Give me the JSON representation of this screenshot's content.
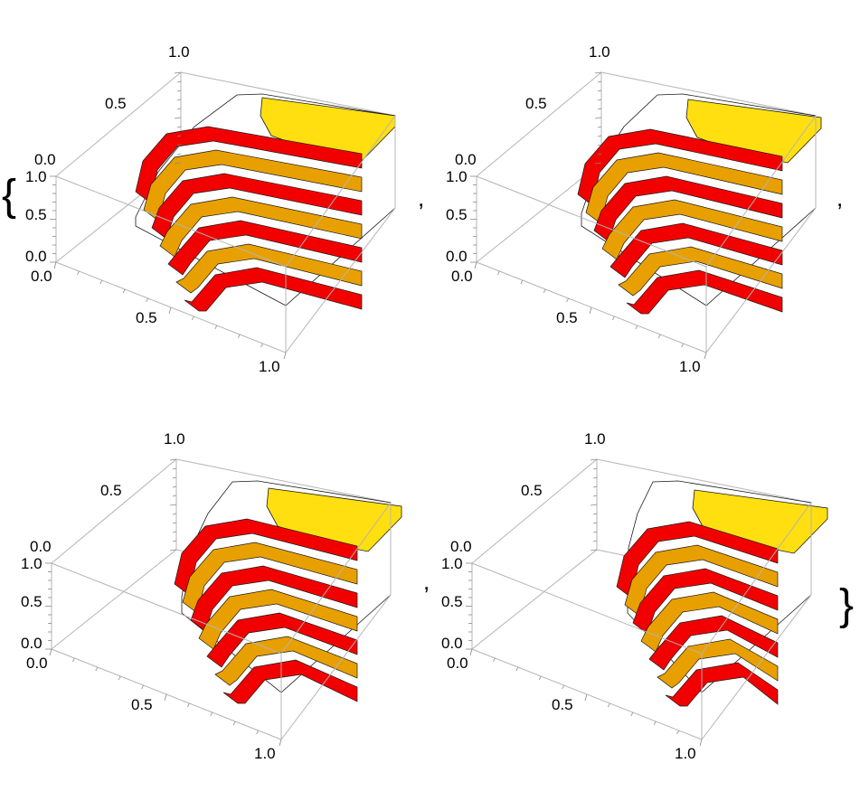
{
  "brace_open": "{",
  "brace_close": "}",
  "separator": ",",
  "colors": {
    "box": "#b4b4b4",
    "red": "#f20000",
    "orange_dark": "#e8a000",
    "orange_light": "#ffd21a",
    "yellow": "#ffdf10",
    "outline": "#1a1a1a"
  },
  "panels": [
    {
      "z_ticks": [
        "1.0",
        "0.5",
        "0.0"
      ],
      "y_ticks": [
        "1.0",
        "0.5",
        "0.0"
      ],
      "x_ticks": [
        "0.0",
        "0.5",
        "1.0"
      ]
    },
    {
      "z_ticks": [
        "1.0",
        "0.5",
        "0.0"
      ],
      "y_ticks": [
        "1.0",
        "0.5",
        "0.0"
      ],
      "x_ticks": [
        "0.0",
        "0.5",
        "1.0"
      ]
    },
    {
      "z_ticks": [
        "1.0",
        "0.5",
        "0.0"
      ],
      "y_ticks": [
        "1.0",
        "0.5",
        "0.0"
      ],
      "x_ticks": [
        "0.0",
        "0.5",
        "1.0"
      ]
    },
    {
      "z_ticks": [
        "1.0",
        "0.5",
        "0.0"
      ],
      "y_ticks": [
        "1.0",
        "0.5",
        "0.0"
      ],
      "x_ticks": [
        "0.0",
        "0.5",
        "1.0"
      ]
    }
  ]
}
